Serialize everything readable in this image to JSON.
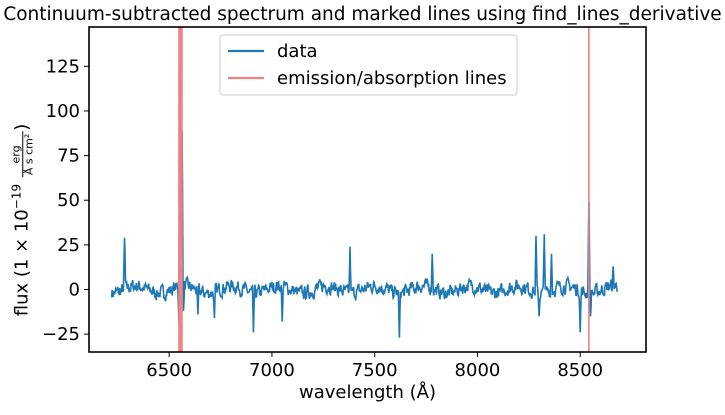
{
  "chart_data": {
    "type": "line",
    "title": "Continuum-subtracted spectrum and marked lines using find_lines_derivative",
    "xlabel": "wavelength (Å)",
    "ylabel": {
      "prefix": "flux (1 × 10",
      "exponent": "−19",
      "frac_num": "erg",
      "frac_den": "Å s cm²",
      "suffix": ")"
    },
    "xlim": [
      6110,
      8820
    ],
    "ylim": [
      -35,
      147
    ],
    "xticks": [
      6500,
      7000,
      7500,
      8000,
      8500
    ],
    "yticks": [
      -25,
      0,
      25,
      50,
      75,
      100,
      125
    ],
    "grid": false,
    "legend": {
      "position": "top-center",
      "entries": [
        {
          "label": "data",
          "color": "#1f77b4"
        },
        {
          "label": "emission/absorption lines",
          "color": "#f08080"
        }
      ]
    },
    "series": [
      {
        "name": "data",
        "color": "#1f77b4",
        "wavelength_range": [
          6220,
          8680
        ],
        "noise_amplitude": 6,
        "features": [
          {
            "x": 6283,
            "y": 32
          },
          {
            "x": 6548,
            "y": -20
          },
          {
            "x": 6553,
            "y": 140
          },
          {
            "x": 6563,
            "y": 99
          },
          {
            "x": 6570,
            "y": -12
          },
          {
            "x": 6640,
            "y": -14
          },
          {
            "x": 6720,
            "y": -16
          },
          {
            "x": 6910,
            "y": -24
          },
          {
            "x": 7050,
            "y": -18
          },
          {
            "x": 7380,
            "y": 24
          },
          {
            "x": 7620,
            "y": -27
          },
          {
            "x": 7780,
            "y": 20
          },
          {
            "x": 8285,
            "y": 30
          },
          {
            "x": 8300,
            "y": -15
          },
          {
            "x": 8325,
            "y": 31
          },
          {
            "x": 8360,
            "y": 20
          },
          {
            "x": 8500,
            "y": -24
          },
          {
            "x": 8542,
            "y": 55
          },
          {
            "x": 8550,
            "y": -15
          },
          {
            "x": 8660,
            "y": 13
          }
        ]
      },
      {
        "name": "emission/absorption lines",
        "color": "#f08080",
        "type": "vline",
        "x": [
          6548,
          6553,
          6556,
          6562,
          8542
        ]
      }
    ]
  }
}
